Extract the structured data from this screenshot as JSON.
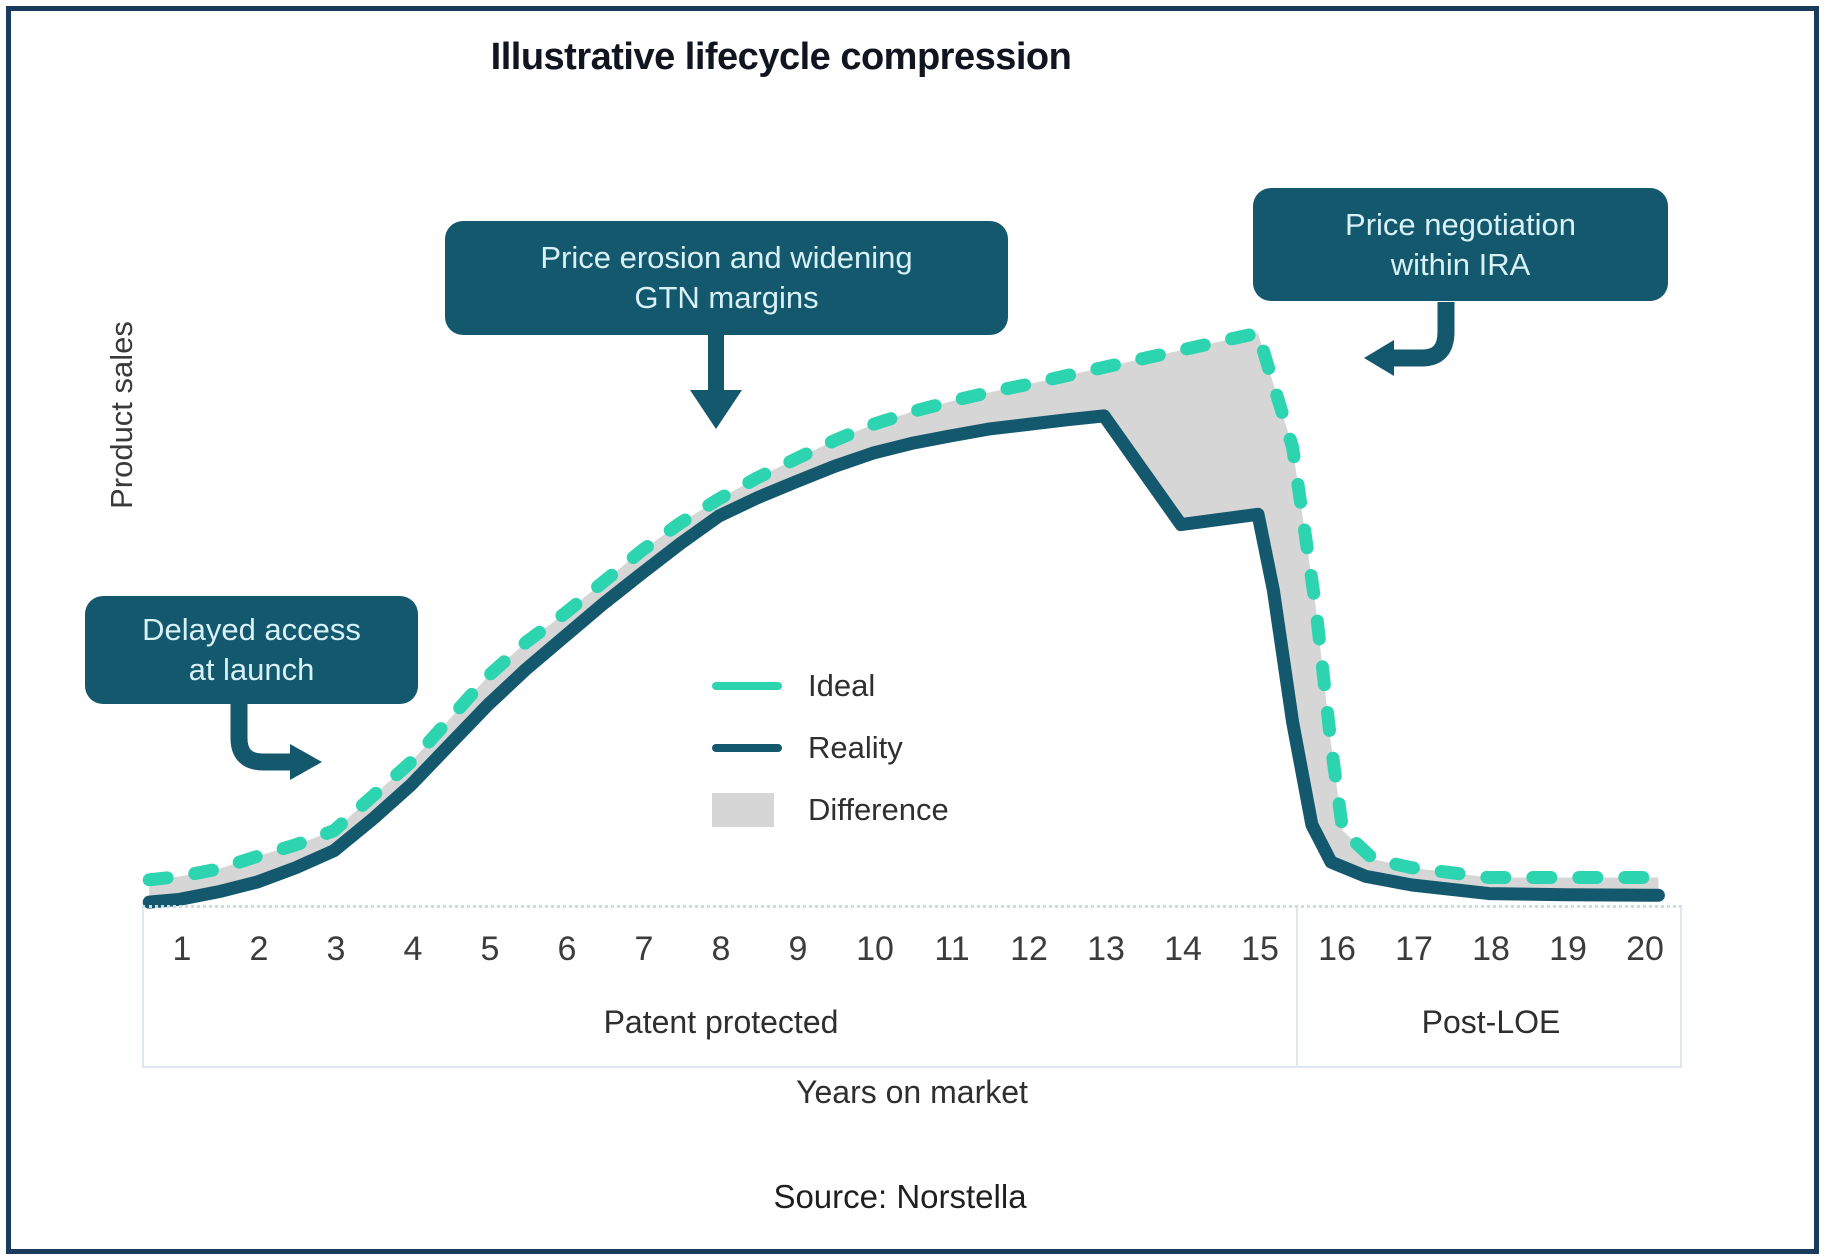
{
  "title": "Illustrative lifecycle compression",
  "y_axis_label": "Product sales",
  "x_axis_label": "Years on market",
  "source": "Source: Norstella",
  "colors": {
    "ideal": "#2dd4b0",
    "reality": "#14586e",
    "difference": "#d6d6d6",
    "callout-text": "#d8f1f7",
    "frame-border": "#1c3a5c",
    "axis-line": "#dde9ee"
  },
  "callouts": {
    "delayed_access": "Delayed access\nat launch",
    "price_erosion": "Price erosion and widening\nGTN margins",
    "price_negotiation": "Price negotiation\nwithin IRA"
  },
  "sections": {
    "patent": "Patent protected",
    "post_loe": "Post-LOE"
  },
  "chart_data": {
    "type": "line",
    "title": "Illustrative lifecycle compression",
    "xlabel": "Years on market",
    "ylabel": "Product sales",
    "x_ticks": [
      1,
      2,
      3,
      4,
      5,
      6,
      7,
      8,
      9,
      10,
      11,
      12,
      13,
      14,
      15,
      16,
      17,
      18,
      19,
      20
    ],
    "x_sections": [
      {
        "label": "Patent protected",
        "from": 1,
        "to": 15
      },
      {
        "label": "Post-LOE",
        "from": 16,
        "to": 20
      }
    ],
    "y_axis_note": "relative product sales, no numeric scale shown (0-100 illustrative)",
    "legend_position": "center",
    "grid": false,
    "series": [
      {
        "name": "Ideal",
        "style": "dashed",
        "color": "#2dd4b0",
        "points": [
          [
            0.6,
            4.4
          ],
          [
            1,
            5
          ],
          [
            1.5,
            6.3
          ],
          [
            2,
            8.5
          ],
          [
            2.5,
            10.5
          ],
          [
            3,
            13
          ],
          [
            3.5,
            19
          ],
          [
            4,
            25
          ],
          [
            4.5,
            32.5
          ],
          [
            5,
            40
          ],
          [
            5.5,
            46
          ],
          [
            6,
            51
          ],
          [
            6.5,
            56.5
          ],
          [
            7,
            62
          ],
          [
            7.5,
            66.8
          ],
          [
            8,
            71
          ],
          [
            8.5,
            74.7
          ],
          [
            9,
            78
          ],
          [
            9.5,
            81.2
          ],
          [
            10,
            84
          ],
          [
            10.5,
            86.2
          ],
          [
            11,
            88
          ],
          [
            11.5,
            89.6
          ],
          [
            12,
            91
          ],
          [
            12.5,
            92.5
          ],
          [
            13,
            94
          ],
          [
            13.5,
            95.5
          ],
          [
            14,
            97
          ],
          [
            14.5,
            98.5
          ],
          [
            15,
            100
          ],
          [
            15.45,
            80
          ],
          [
            15.75,
            52
          ],
          [
            15.95,
            28
          ],
          [
            16.1,
            13
          ],
          [
            16.5,
            8
          ],
          [
            17,
            6.5
          ],
          [
            18,
            4.8
          ],
          [
            19,
            4.8
          ],
          [
            20.2,
            4.8
          ]
        ]
      },
      {
        "name": "Reality",
        "style": "solid",
        "color": "#14586e",
        "points": [
          [
            0.6,
            0.5
          ],
          [
            1,
            1
          ],
          [
            1.5,
            2.3
          ],
          [
            2,
            4
          ],
          [
            2.5,
            6.5
          ],
          [
            3,
            9.5
          ],
          [
            3.5,
            15
          ],
          [
            4,
            21
          ],
          [
            4.5,
            28
          ],
          [
            5,
            35
          ],
          [
            5.5,
            41.3
          ],
          [
            6,
            47
          ],
          [
            6.5,
            52.7
          ],
          [
            7,
            58
          ],
          [
            7.5,
            63.2
          ],
          [
            8,
            68
          ],
          [
            8.5,
            71.2
          ],
          [
            9,
            74
          ],
          [
            9.5,
            76.7
          ],
          [
            10,
            79
          ],
          [
            10.5,
            80.7
          ],
          [
            11,
            82
          ],
          [
            11.5,
            83.2
          ],
          [
            12,
            84
          ],
          [
            12.5,
            84.8
          ],
          [
            13,
            85.5
          ],
          [
            14,
            66.5
          ],
          [
            15,
            68.3
          ],
          [
            15.2,
            55
          ],
          [
            15.45,
            32
          ],
          [
            15.7,
            14
          ],
          [
            15.95,
            7.5
          ],
          [
            16.4,
            5
          ],
          [
            17,
            3.5
          ],
          [
            18,
            2
          ],
          [
            19,
            1.8
          ],
          [
            20.2,
            1.7
          ]
        ]
      },
      {
        "name": "Difference",
        "style": "area-between",
        "color": "#d6d6d6",
        "between": [
          "Ideal",
          "Reality"
        ]
      }
    ],
    "annotations": [
      {
        "label": "Delayed access\nat launch",
        "target_years": "1-3"
      },
      {
        "label": "Price erosion and widening\nGTN margins",
        "target_years": "7-8"
      },
      {
        "label": "Price negotiation\nwithin IRA",
        "target_years": "15-16"
      }
    ]
  }
}
